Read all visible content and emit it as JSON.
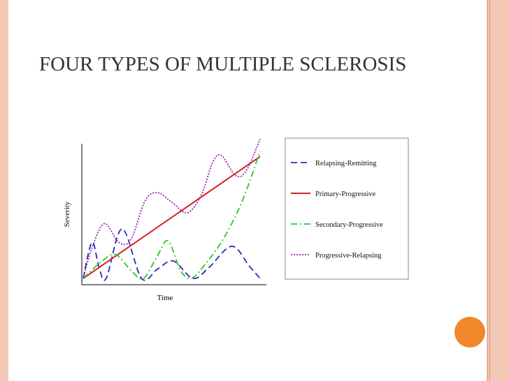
{
  "slide": {
    "title": "FOUR TYPES OF MULTIPLE SCLEROSIS",
    "accent_color": "#f0882a",
    "border_color": "#f3c9b6"
  },
  "chart_data": {
    "type": "line",
    "xlabel": "Time",
    "ylabel": "Severity",
    "x_ticks_shown": false,
    "y_ticks_shown": false,
    "grid": false,
    "legend_placement": "right",
    "series": [
      {
        "name": "Relapsing-Remitting",
        "color": "#2a2ab8",
        "style": "dashed",
        "points": [
          [
            0,
            0
          ],
          [
            0.05,
            0.27
          ],
          [
            0.09,
            0.08
          ],
          [
            0.13,
            0.0
          ],
          [
            0.22,
            0.37
          ],
          [
            0.33,
            0.0
          ],
          [
            0.42,
            0.07
          ],
          [
            0.51,
            0.13
          ],
          [
            0.62,
            0.0
          ],
          [
            0.71,
            0.08
          ],
          [
            0.84,
            0.24
          ],
          [
            0.94,
            0.09
          ],
          [
            1.0,
            0.0
          ]
        ]
      },
      {
        "name": "Primary-Progressive",
        "color": "#d42222",
        "style": "solid",
        "points": [
          [
            0,
            0
          ],
          [
            1.0,
            0.91
          ]
        ]
      },
      {
        "name": "Secondary-Progressive",
        "color": "#22cc22",
        "style": "dash-dot",
        "points": [
          [
            0,
            0
          ],
          [
            0.09,
            0.11
          ],
          [
            0.18,
            0.18
          ],
          [
            0.27,
            0.06
          ],
          [
            0.34,
            0.0
          ],
          [
            0.42,
            0.17
          ],
          [
            0.48,
            0.28
          ],
          [
            0.55,
            0.06
          ],
          [
            0.61,
            0.0
          ],
          [
            0.68,
            0.09
          ],
          [
            0.79,
            0.29
          ],
          [
            0.9,
            0.58
          ],
          [
            1.0,
            0.95
          ]
        ]
      },
      {
        "name": "Progressive-Relapsing",
        "color": "#9922aa",
        "style": "dotted",
        "points": [
          [
            0,
            0
          ],
          [
            0.05,
            0.23
          ],
          [
            0.12,
            0.41
          ],
          [
            0.2,
            0.27
          ],
          [
            0.27,
            0.29
          ],
          [
            0.35,
            0.58
          ],
          [
            0.42,
            0.64
          ],
          [
            0.5,
            0.57
          ],
          [
            0.59,
            0.49
          ],
          [
            0.67,
            0.63
          ],
          [
            0.73,
            0.86
          ],
          [
            0.78,
            0.92
          ],
          [
            0.86,
            0.77
          ],
          [
            0.92,
            0.8
          ],
          [
            1.0,
            1.04
          ]
        ]
      }
    ]
  }
}
